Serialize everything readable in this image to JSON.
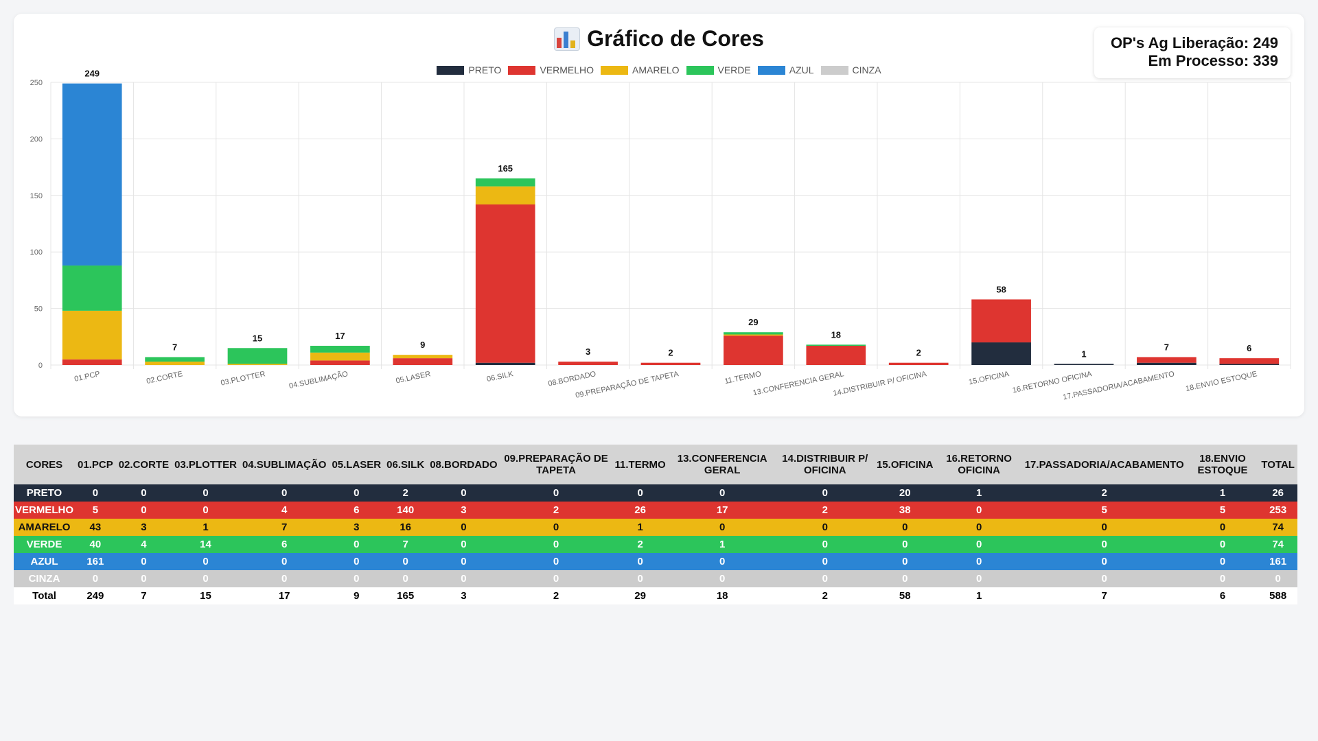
{
  "title": "Gráfico de Cores",
  "info": {
    "aguardando": "OP's Ag Liberação: 249",
    "em_processo": "Em Processo: 339"
  },
  "colors": {
    "PRETO": "#222d3e",
    "VERMELHO": "#de3530",
    "AMARELO": "#ecb813",
    "VERDE": "#2cc55b",
    "AZUL": "#2b85d4",
    "CINZA": "#cccccc"
  },
  "chart_data": {
    "type": "bar",
    "stacked": true,
    "title": "Gráfico de Cores",
    "legend_position": "top",
    "grid": true,
    "ylim": [
      0,
      250
    ],
    "yticks": [
      0,
      50,
      100,
      150,
      200,
      250
    ],
    "categories": [
      "01.PCP",
      "02.CORTE",
      "03.PLOTTER",
      "04.SUBLIMAÇÃO",
      "05.LASER",
      "06.SILK",
      "08.BORDADO",
      "09.PREPARAÇÃO DE TAPETA",
      "11.TERMO",
      "13.CONFERENCIA GERAL",
      "14.DISTRIBUIR P/ OFICINA",
      "15.OFICINA",
      "16.RETORNO OFICINA",
      "17.PASSADORIA/ACABAMENTO",
      "18.ENVIO ESTOQUE"
    ],
    "series": [
      {
        "name": "PRETO",
        "values": [
          0,
          0,
          0,
          0,
          0,
          2,
          0,
          0,
          0,
          0,
          0,
          20,
          1,
          2,
          1
        ]
      },
      {
        "name": "VERMELHO",
        "values": [
          5,
          0,
          0,
          4,
          6,
          140,
          3,
          2,
          26,
          17,
          2,
          38,
          0,
          5,
          5
        ]
      },
      {
        "name": "AMARELO",
        "values": [
          43,
          3,
          1,
          7,
          3,
          16,
          0,
          0,
          1,
          0,
          0,
          0,
          0,
          0,
          0
        ]
      },
      {
        "name": "VERDE",
        "values": [
          40,
          4,
          14,
          6,
          0,
          7,
          0,
          0,
          2,
          1,
          0,
          0,
          0,
          0,
          0
        ]
      },
      {
        "name": "AZUL",
        "values": [
          161,
          0,
          0,
          0,
          0,
          0,
          0,
          0,
          0,
          0,
          0,
          0,
          0,
          0,
          0
        ]
      },
      {
        "name": "CINZA",
        "values": [
          0,
          0,
          0,
          0,
          0,
          0,
          0,
          0,
          0,
          0,
          0,
          0,
          0,
          0,
          0
        ]
      }
    ],
    "totals": [
      249,
      7,
      15,
      17,
      9,
      165,
      3,
      2,
      29,
      18,
      2,
      58,
      1,
      7,
      6
    ]
  },
  "table": {
    "corner_header": "CORES",
    "headers": [
      "01.PCP",
      "02.CORTE",
      "03.PLOTTER",
      "04.SUBLIMAÇÃO",
      "05.LASER",
      "06.SILK",
      "08.BORDADO",
      "09.PREPARAÇÃO DE TAPETA",
      "11.TERMO",
      "13.CONFERENCIA GERAL",
      "14.DISTRIBUIR P/ OFICINA",
      "15.OFICINA",
      "16.RETORNO OFICINA",
      "17.PASSADORIA/ACABAMENTO",
      "18.ENVIO ESTOQUE"
    ],
    "total_header": "TOTAL",
    "rows": [
      {
        "label": "PRETO",
        "values": [
          0,
          0,
          0,
          0,
          0,
          2,
          0,
          0,
          0,
          0,
          0,
          20,
          1,
          2,
          1
        ],
        "total": 26
      },
      {
        "label": "VERMELHO",
        "values": [
          5,
          0,
          0,
          4,
          6,
          140,
          3,
          2,
          26,
          17,
          2,
          38,
          0,
          5,
          5
        ],
        "total": 253
      },
      {
        "label": "AMARELO",
        "values": [
          43,
          3,
          1,
          7,
          3,
          16,
          0,
          0,
          1,
          0,
          0,
          0,
          0,
          0,
          0
        ],
        "total": 74
      },
      {
        "label": "VERDE",
        "values": [
          40,
          4,
          14,
          6,
          0,
          7,
          0,
          0,
          2,
          1,
          0,
          0,
          0,
          0,
          0
        ],
        "total": 74
      },
      {
        "label": "AZUL",
        "values": [
          161,
          0,
          0,
          0,
          0,
          0,
          0,
          0,
          0,
          0,
          0,
          0,
          0,
          0,
          0
        ],
        "total": 161
      },
      {
        "label": "CINZA",
        "values": [
          0,
          0,
          0,
          0,
          0,
          0,
          0,
          0,
          0,
          0,
          0,
          0,
          0,
          0,
          0
        ],
        "total": 0
      }
    ],
    "total_row": {
      "label": "Total",
      "values": [
        249,
        7,
        15,
        17,
        9,
        165,
        3,
        2,
        29,
        18,
        2,
        58,
        1,
        7,
        6
      ],
      "total": 588
    }
  }
}
